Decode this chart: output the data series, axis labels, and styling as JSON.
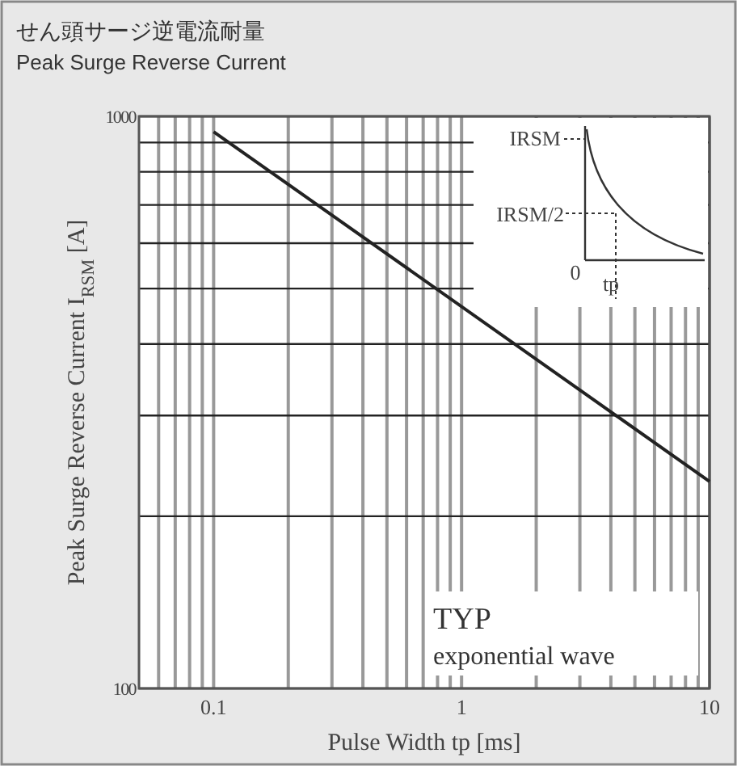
{
  "chart_data": {
    "type": "line",
    "title": "せん頭サージ逆電流耐量",
    "subtitle": "Peak Surge Reverse Current",
    "xlabel": "Pulse Width tp [ms]",
    "ylabel": "Peak Surge Reverse Current I$_{RSM}$ [A]",
    "x": [
      0.1,
      10
    ],
    "series": [
      {
        "color": "#222222",
        "values": [
          940,
          230
        ]
      }
    ],
    "log": "xy",
    "xlim": [
      0.05,
      10
    ],
    "ylim": [
      100,
      1000
    ],
    "xticks": [
      {
        "value": 0.06,
        "label": null
      },
      {
        "value": 0.07,
        "label": null
      },
      {
        "value": 0.08,
        "label": null
      },
      {
        "value": 0.09,
        "label": null
      },
      0.1,
      {
        "value": 0.2,
        "label": null
      },
      {
        "value": 0.3,
        "label": null
      },
      {
        "value": 0.4,
        "label": null
      },
      {
        "value": 0.5,
        "label": null
      },
      {
        "value": 0.6,
        "label": null
      },
      {
        "value": 0.7,
        "label": null
      },
      {
        "value": 0.8,
        "label": null
      },
      {
        "value": 0.9,
        "label": null
      },
      1,
      {
        "value": 2,
        "label": null
      },
      {
        "value": 3,
        "label": null
      },
      {
        "value": 4,
        "label": null
      },
      {
        "value": 5,
        "label": null
      },
      {
        "value": 6,
        "label": null
      },
      {
        "value": 7,
        "label": null
      },
      {
        "value": 8,
        "label": null
      },
      {
        "value": 9,
        "label": null
      },
      10
    ],
    "yticks": [
      100,
      {
        "value": 200,
        "label": null
      },
      {
        "value": 300,
        "label": null
      },
      {
        "value": 400,
        "label": null
      },
      {
        "value": 500,
        "label": null
      },
      {
        "value": 600,
        "label": null
      },
      {
        "value": 700,
        "label": null
      },
      {
        "value": 800,
        "label": null
      },
      {
        "value": 900,
        "label": null
      },
      1000
    ],
    "grid": true,
    "line_style": "solid",
    "marker": "none",
    "annotations": [
      "IRSM",
      "IRSM/2",
      "0",
      "tp",
      "TYP",
      "exponential wave"
    ]
  }
}
